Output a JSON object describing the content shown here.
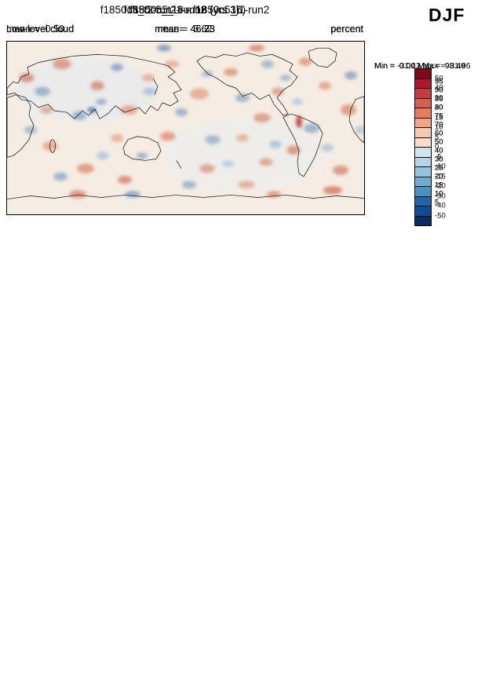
{
  "season_label": "DJF",
  "colorbar_colors": [
    "#7f0a20",
    "#b2182b",
    "#c43c3c",
    "#d6604d",
    "#e77d58",
    "#f4a582",
    "#fbc9ac",
    "#fddbc7",
    "#d1e5f0",
    "#b4d5e8",
    "#92c5de",
    "#6aaed3",
    "#4393c3",
    "#2166ac",
    "#0a4f94",
    "#053061"
  ],
  "panels": [
    {
      "title": "f1850c5_t2-run16 (yrs 16)",
      "left_text": "Low-level cloud",
      "center_text": "mean=  46.23",
      "right_text": "percent",
      "minmax_text": "Min =  0.00 Max =  98.46",
      "cb_ticks": [
        "95",
        "90",
        "85",
        "80",
        "75",
        "70",
        "60",
        "50",
        "40",
        "30",
        "25",
        "20",
        "15",
        "10",
        "5"
      ]
    },
    {
      "title": "f1850c5_i1-run2 (yrs 3)",
      "left_text": "Low-level cloud",
      "center_text": "mean=  46.73",
      "right_text": "percent",
      "minmax_text": "Min =  0.00 Max =  98.40",
      "cb_ticks": [
        "95",
        "90",
        "85",
        "80",
        "75",
        "70",
        "60",
        "50",
        "40",
        "30",
        "25",
        "20",
        "15",
        "10",
        "5"
      ]
    },
    {
      "title": "f1850c5_t2-run16 - f1850c5_i1-run2",
      "left_text": "mean = -0.50",
      "center_text": "rmse =  5.62",
      "right_text": "percent",
      "minmax_text": "Min = -31.43 Max =  31.96",
      "cb_ticks": [
        "50",
        "40",
        "30",
        "20",
        "15",
        "10",
        "5",
        "0",
        "-5",
        "-10",
        "-15",
        "-20",
        "-30",
        "-40",
        "-50"
      ]
    }
  ],
  "chart_data": [
    {
      "type": "heatmap",
      "projection": "global-latlon-map",
      "title": "f1850c5_t2-run16 (yrs 16)",
      "variable": "Low-level cloud",
      "units": "percent",
      "season": "DJF",
      "stats": {
        "mean": 46.23,
        "min": 0.0,
        "max": 98.46
      },
      "contour_levels": [
        5,
        10,
        15,
        20,
        25,
        30,
        40,
        50,
        60,
        70,
        75,
        80,
        85,
        90,
        95
      ],
      "palette": "blue-white-red",
      "legend_position": "right"
    },
    {
      "type": "heatmap",
      "projection": "global-latlon-map",
      "title": "f1850c5_i1-run2 (yrs 3)",
      "variable": "Low-level cloud",
      "units": "percent",
      "season": "DJF",
      "stats": {
        "mean": 46.73,
        "min": 0.0,
        "max": 98.4
      },
      "contour_levels": [
        5,
        10,
        15,
        20,
        25,
        30,
        40,
        50,
        60,
        70,
        75,
        80,
        85,
        90,
        95
      ],
      "palette": "blue-white-red",
      "legend_position": "right"
    },
    {
      "type": "heatmap",
      "projection": "global-latlon-map",
      "title": "f1850c5_t2-run16 - f1850c5_i1-run2",
      "units": "percent",
      "season": "DJF",
      "stats": {
        "mean": -0.5,
        "rmse": 5.62,
        "min": -31.43,
        "max": 31.96
      },
      "contour_levels": [
        -50,
        -40,
        -30,
        -20,
        -15,
        -10,
        -5,
        0,
        5,
        10,
        15,
        20,
        30,
        40,
        50
      ],
      "palette": "blue-white-red",
      "legend_position": "right"
    }
  ]
}
